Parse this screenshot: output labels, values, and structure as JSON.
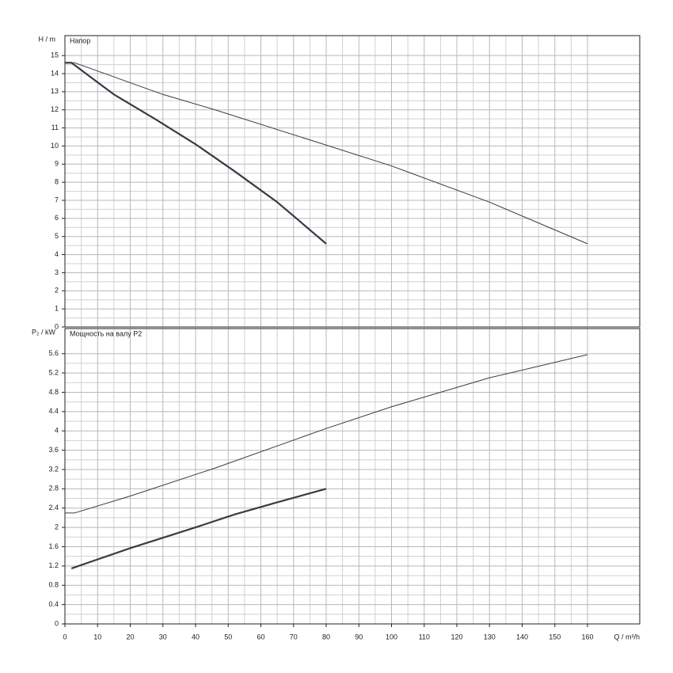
{
  "chart_data": [
    {
      "type": "line",
      "title": "Напор",
      "ylabel": "H / m",
      "xlim": [
        0,
        176
      ],
      "ylim": [
        0,
        16.1
      ],
      "yticks": [
        0,
        1,
        2,
        3,
        4,
        5,
        6,
        7,
        8,
        9,
        10,
        11,
        12,
        13,
        14,
        15
      ],
      "grid": true,
      "series": [
        {
          "color": "#3a3a46",
          "line_width": 2.2,
          "x": [
            0,
            2,
            15,
            28,
            40,
            52,
            65,
            80
          ],
          "values": [
            14.6,
            14.6,
            12.85,
            11.45,
            10.1,
            8.6,
            6.9,
            4.6
          ]
        },
        {
          "color": "#3a3a46",
          "line_width": 1,
          "x": [
            0,
            3,
            30,
            46,
            80,
            100,
            130,
            160
          ],
          "values": [
            14.6,
            14.6,
            12.85,
            12.0,
            10.05,
            8.9,
            6.9,
            4.6
          ]
        }
      ]
    },
    {
      "type": "line",
      "title": "Мощность на валу P2",
      "ylabel": "P₂ / kW",
      "xlabel": "Q / m³/h",
      "xlim": [
        0,
        176
      ],
      "ylim": [
        0,
        6.12
      ],
      "xticks": [
        0,
        10,
        20,
        30,
        40,
        50,
        60,
        70,
        80,
        90,
        100,
        110,
        120,
        130,
        140,
        150,
        160
      ],
      "yticks": [
        0,
        0.4,
        0.8,
        1.2,
        1.6,
        2,
        2.4,
        2.8,
        3.2,
        3.6,
        4,
        4.4,
        4.8,
        5.2,
        5.6
      ],
      "grid": true,
      "series": [
        {
          "color": "#3a3a46",
          "line_width": 2.2,
          "x": [
            2,
            20,
            40,
            52,
            65,
            80
          ],
          "values": [
            1.15,
            1.57,
            2.0,
            2.27,
            2.52,
            2.8
          ]
        },
        {
          "color": "#3a3a46",
          "line_width": 1,
          "x": [
            0,
            3,
            20,
            46,
            80,
            100,
            130,
            160
          ],
          "values": [
            2.3,
            2.3,
            2.65,
            3.23,
            4.05,
            4.5,
            5.1,
            5.58
          ]
        }
      ]
    }
  ]
}
